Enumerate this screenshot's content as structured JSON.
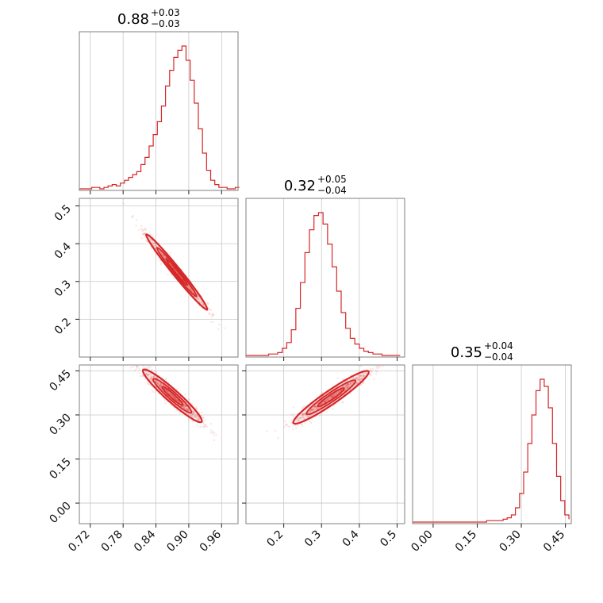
{
  "chart_data": {
    "type": "corner",
    "color": "#d62728",
    "parameters": [
      {
        "range": [
          0.7,
          0.99
        ],
        "ticks": [
          0.72,
          0.78,
          0.84,
          0.9,
          0.96
        ],
        "tick_labels": [
          "0.72",
          "0.78",
          "0.84",
          "0.90",
          "0.96"
        ]
      },
      {
        "range": [
          0.1,
          0.52
        ],
        "ticks": [
          0.2,
          0.3,
          0.4,
          0.5
        ],
        "tick_labels": [
          "0.2",
          "0.3",
          "0.4",
          "0.5"
        ]
      },
      {
        "range": [
          -0.07,
          0.47
        ],
        "ticks": [
          0.0,
          0.15,
          0.3,
          0.45
        ],
        "tick_labels": [
          "0.00",
          "0.15",
          "0.30",
          "0.45"
        ]
      }
    ],
    "titles": [
      {
        "median": "0.88",
        "plus": "+0.03",
        "minus": "−0.03"
      },
      {
        "median": "0.32",
        "plus": "+0.05",
        "minus": "−0.04"
      },
      {
        "median": "0.35",
        "plus": "+0.04",
        "minus": "−0.04"
      }
    ],
    "marginal_histograms": [
      {
        "param": 0,
        "bin_edges": [
          0.7,
          0.7075,
          0.715,
          0.7225,
          0.73,
          0.7375,
          0.745,
          0.7525,
          0.76,
          0.7675,
          0.775,
          0.7825,
          0.79,
          0.7975,
          0.805,
          0.8125,
          0.82,
          0.8275,
          0.835,
          0.8425,
          0.85,
          0.8575,
          0.865,
          0.8725,
          0.88,
          0.8875,
          0.895,
          0.9025,
          0.91,
          0.9175,
          0.925,
          0.9325,
          0.94,
          0.9475,
          0.955,
          0.9625,
          0.97,
          0.9775,
          0.985,
          0.9925
        ],
        "heights": [
          0.0,
          0.0,
          0.0,
          0.01,
          0.01,
          0.0,
          0.01,
          0.02,
          0.03,
          0.02,
          0.04,
          0.06,
          0.08,
          0.1,
          0.12,
          0.17,
          0.22,
          0.3,
          0.38,
          0.47,
          0.58,
          0.72,
          0.83,
          0.92,
          0.97,
          1.0,
          0.9,
          0.76,
          0.6,
          0.42,
          0.25,
          0.13,
          0.06,
          0.03,
          0.01,
          0.01,
          0.0,
          0.0,
          0.01
        ]
      },
      {
        "param": 1,
        "bin_edges": [
          0.1,
          0.112,
          0.124,
          0.136,
          0.148,
          0.16,
          0.172,
          0.184,
          0.196,
          0.208,
          0.22,
          0.232,
          0.244,
          0.256,
          0.268,
          0.28,
          0.292,
          0.304,
          0.316,
          0.328,
          0.34,
          0.352,
          0.364,
          0.376,
          0.388,
          0.4,
          0.412,
          0.424,
          0.436,
          0.448,
          0.46,
          0.472,
          0.484,
          0.496,
          0.508
        ],
        "heights": [
          0.0,
          0.0,
          0.0,
          0.0,
          0.0,
          0.01,
          0.01,
          0.02,
          0.05,
          0.09,
          0.18,
          0.33,
          0.51,
          0.72,
          0.88,
          0.98,
          1.0,
          0.92,
          0.78,
          0.62,
          0.45,
          0.3,
          0.19,
          0.12,
          0.08,
          0.05,
          0.03,
          0.02,
          0.01,
          0.01,
          0.0,
          0.0,
          0.0,
          0.0
        ]
      },
      {
        "param": 2,
        "bin_edges": [
          -0.07,
          -0.056,
          -0.042,
          -0.028,
          -0.014,
          0.0,
          0.014,
          0.028,
          0.042,
          0.056,
          0.07,
          0.084,
          0.098,
          0.112,
          0.126,
          0.14,
          0.154,
          0.168,
          0.182,
          0.196,
          0.21,
          0.224,
          0.238,
          0.252,
          0.266,
          0.28,
          0.294,
          0.308,
          0.322,
          0.336,
          0.35,
          0.364,
          0.378,
          0.392,
          0.406,
          0.42,
          0.434,
          0.448,
          0.462
        ],
        "heights": [
          0.0,
          0.0,
          0.0,
          0.0,
          0.0,
          0.0,
          0.0,
          0.0,
          0.0,
          0.0,
          0.0,
          0.0,
          0.0,
          0.0,
          0.0,
          0.0,
          0.0,
          0.0,
          0.01,
          0.01,
          0.01,
          0.01,
          0.02,
          0.03,
          0.05,
          0.1,
          0.2,
          0.35,
          0.55,
          0.75,
          0.92,
          1.0,
          0.95,
          0.8,
          0.55,
          0.32,
          0.15,
          0.05,
          0.02
        ]
      }
    ],
    "joint_distributions": [
      {
        "x_param": 0,
        "y_param": 1,
        "mean": [
          0.878,
          0.325
        ],
        "sd": [
          0.028,
          0.05
        ],
        "corr": -0.985
      },
      {
        "x_param": 0,
        "y_param": 2,
        "mean": [
          0.87,
          0.365
        ],
        "sd": [
          0.027,
          0.045
        ],
        "corr": -0.95
      },
      {
        "x_param": 1,
        "y_param": 2,
        "mean": [
          0.325,
          0.36
        ],
        "sd": [
          0.05,
          0.045
        ],
        "corr": 0.95
      }
    ]
  }
}
